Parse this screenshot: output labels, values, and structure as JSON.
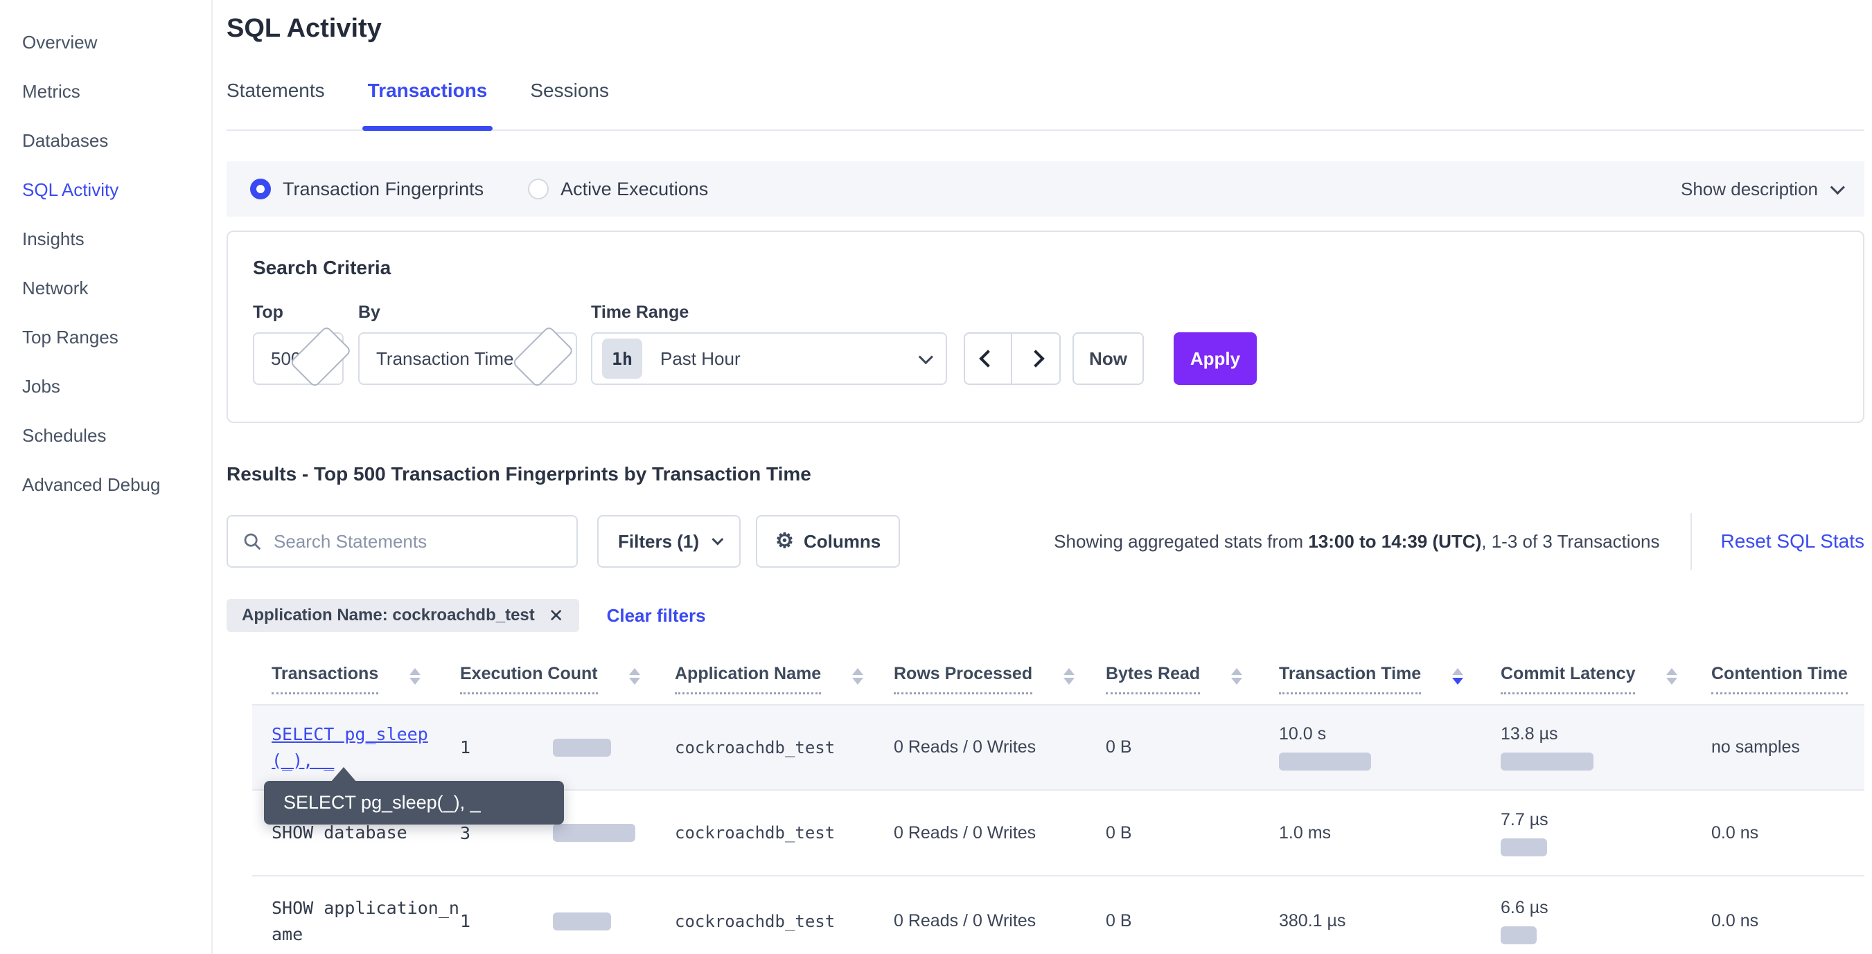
{
  "sidebar": {
    "items": [
      {
        "label": "Overview",
        "active": false
      },
      {
        "label": "Metrics",
        "active": false
      },
      {
        "label": "Databases",
        "active": false
      },
      {
        "label": "SQL Activity",
        "active": true
      },
      {
        "label": "Insights",
        "active": false
      },
      {
        "label": "Network",
        "active": false
      },
      {
        "label": "Top Ranges",
        "active": false
      },
      {
        "label": "Jobs",
        "active": false
      },
      {
        "label": "Schedules",
        "active": false
      },
      {
        "label": "Advanced Debug",
        "active": false
      }
    ]
  },
  "header": {
    "title": "SQL Activity",
    "tabs": [
      {
        "label": "Statements",
        "active": false
      },
      {
        "label": "Transactions",
        "active": true
      },
      {
        "label": "Sessions",
        "active": false
      }
    ]
  },
  "view_mode": {
    "options": [
      {
        "label": "Transaction Fingerprints",
        "selected": true
      },
      {
        "label": "Active Executions",
        "selected": false
      }
    ],
    "show_description_label": "Show description"
  },
  "search_criteria": {
    "title": "Search Criteria",
    "top": {
      "label": "Top",
      "value": "500"
    },
    "by": {
      "label": "By",
      "value": "Transaction Time"
    },
    "time_range": {
      "label": "Time Range",
      "badge": "1h",
      "value": "Past Hour"
    },
    "now_label": "Now",
    "apply_label": "Apply"
  },
  "results": {
    "title": "Results - Top 500 Transaction Fingerprints by Transaction Time",
    "search_placeholder": "Search Statements",
    "filters_label": "Filters (1)",
    "columns_label": "Columns",
    "stats_prefix": "Showing aggregated stats from ",
    "stats_bold": "13:00 to 14:39 (UTC)",
    "stats_suffix": ", 1-3 of 3 Transactions",
    "reset_label": "Reset SQL Stats",
    "filter_chip": "Application Name: cockroachdb_test",
    "clear_filters_label": "Clear filters"
  },
  "table": {
    "columns": [
      {
        "label": "Transactions",
        "sort": null
      },
      {
        "label": "Execution Count",
        "sort": null
      },
      {
        "label": "Application Name",
        "sort": null
      },
      {
        "label": "Rows Processed",
        "sort": null
      },
      {
        "label": "Bytes Read",
        "sort": null
      },
      {
        "label": "Transaction Time",
        "sort": "desc"
      },
      {
        "label": "Commit Latency",
        "sort": null
      },
      {
        "label": "Contention Time",
        "sort": null
      }
    ],
    "rows": [
      {
        "fingerprint": "SELECT pg_sleep(_), _",
        "is_link": true,
        "execution_count": "1",
        "count_bar_w": 84,
        "app_name": "cockroachdb_test",
        "rows_processed": "0 Reads / 0 Writes",
        "bytes_read": "0 B",
        "transaction_time": "10.0 s",
        "txn_bar_w": 133,
        "commit_latency": "13.8 µs",
        "commit_bar_w": 134,
        "contention_time": "no samples"
      },
      {
        "fingerprint": "SHOW database",
        "is_link": false,
        "execution_count": "3",
        "count_bar_w": 119,
        "app_name": "cockroachdb_test",
        "rows_processed": "0 Reads / 0 Writes",
        "bytes_read": "0 B",
        "transaction_time": "1.0 ms",
        "txn_bar_w": 0,
        "commit_latency": "7.7 µs",
        "commit_bar_w": 67,
        "contention_time": "0.0 ns"
      },
      {
        "fingerprint": "SHOW application_name",
        "is_link": false,
        "execution_count": "1",
        "count_bar_w": 84,
        "app_name": "cockroachdb_test",
        "rows_processed": "0 Reads / 0 Writes",
        "bytes_read": "0 B",
        "transaction_time": "380.1 µs",
        "txn_bar_w": 0,
        "commit_latency": "6.6 µs",
        "commit_bar_w": 52,
        "contention_time": "0.0 ns"
      }
    ]
  },
  "tooltip": {
    "text": "SELECT pg_sleep(_), _"
  },
  "colors": {
    "accent_blue": "#3a4af2",
    "apply_purple": "#7d2af8",
    "bar_gray": "#c8cdde",
    "tooltip_bg": "#4b5566",
    "row_highlight": "#f5f6f9"
  }
}
